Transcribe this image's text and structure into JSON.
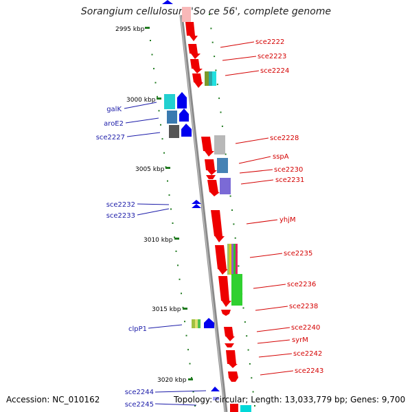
{
  "title": "Sorangium cellulosum 'So ce 56', complete genome",
  "footer": {
    "accession": "Accession: NC_010162",
    "topology": "Topology: circular; Length: 13,033,779 bp; Genes: 9,700"
  },
  "scale_labels": [
    "2995 kbp",
    "3000 kbp",
    "3005 kbp",
    "3010 kbp",
    "3015 kbp",
    "3020 kbp"
  ],
  "right_labels": [
    "sce2222",
    "sce2223",
    "sce2224",
    "sce2228",
    "sspA",
    "sce2230",
    "sce2231",
    "yhjM",
    "sce2235",
    "sce2236",
    "sce2238",
    "sce2240",
    "syrM",
    "sce2242",
    "sce2243"
  ],
  "left_labels": [
    "galK",
    "aroE2",
    "sce2227",
    "sce2232",
    "sce2233",
    "clpP1",
    "sce2244",
    "sce2245"
  ],
  "colors": {
    "forward_strand": "#ee0000",
    "reverse_strand": "#0000ee",
    "backbone": "#8a8a8a",
    "tick_major": "#1f7a1f",
    "label_forward": "#d40000",
    "label_reverse": "#1a1aa8"
  }
}
